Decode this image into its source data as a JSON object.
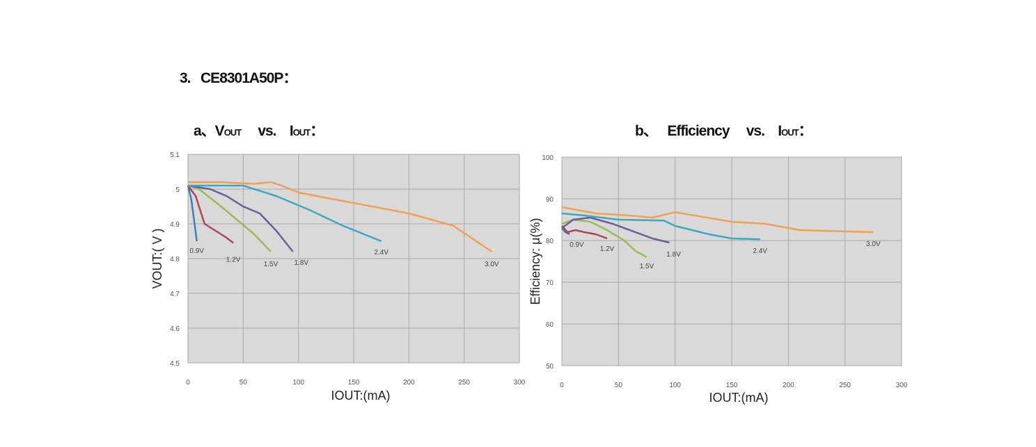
{
  "section_title": "3.   CE8301A50P：",
  "chart_data": [
    {
      "type": "line",
      "title_prefix": "a、V",
      "title_sub1": "OUT",
      "title_mid": "     vs.    I",
      "title_sub2": "OUT",
      "title_suffix": "：",
      "xlabel": "IOUT:(mA)",
      "ylabel": "VOUT:( V )",
      "xlim": [
        0,
        300
      ],
      "ylim": [
        4.5,
        5.1
      ],
      "xticks": [
        "0",
        "50",
        "100",
        "150",
        "200",
        "250",
        "300"
      ],
      "yticks": [
        "4.5",
        "4.6",
        "4.7",
        "4.8",
        "4.9",
        "5",
        "5.1"
      ],
      "grid": true,
      "series": [
        {
          "name": "0.9V",
          "color": "#3b7fb5",
          "x": [
            0,
            3,
            6,
            8
          ],
          "y": [
            5.01,
            4.97,
            4.9,
            4.85
          ]
        },
        {
          "name": "1.2V",
          "color": "#b04456",
          "x": [
            0,
            7,
            12,
            15,
            25,
            35,
            41
          ],
          "y": [
            5.01,
            4.98,
            4.93,
            4.9,
            4.88,
            4.86,
            4.845
          ]
        },
        {
          "name": "1.5V",
          "color": "#9bbb59",
          "x": [
            0,
            10,
            18,
            30,
            45,
            60,
            75
          ],
          "y": [
            5.01,
            5.0,
            4.98,
            4.95,
            4.91,
            4.87,
            4.82
          ]
        },
        {
          "name": "1.8V",
          "color": "#6b5b9a",
          "x": [
            0,
            20,
            35,
            50,
            65,
            80,
            95
          ],
          "y": [
            5.01,
            5.0,
            4.98,
            4.95,
            4.93,
            4.88,
            4.82
          ]
        },
        {
          "name": "2.4V",
          "color": "#3fa6c4",
          "x": [
            0,
            30,
            50,
            80,
            110,
            140,
            175
          ],
          "y": [
            5.01,
            5.01,
            5.01,
            4.98,
            4.94,
            4.895,
            4.85
          ]
        },
        {
          "name": "3.0V",
          "color": "#f0a050",
          "x": [
            0,
            30,
            60,
            75,
            85,
            100,
            150,
            200,
            240,
            275
          ],
          "y": [
            5.02,
            5.02,
            5.015,
            5.02,
            5.01,
            4.99,
            4.96,
            4.93,
            4.895,
            4.82
          ]
        }
      ]
    },
    {
      "type": "line",
      "title_prefix": "b、   Efficiency     vs.    I",
      "title_sub1": "",
      "title_mid": "",
      "title_sub2": "OUT",
      "title_suffix": "：",
      "xlabel": "IOUT:(mA)",
      "ylabel": "Efficiency: μ(%)",
      "xlim": [
        0,
        300
      ],
      "ylim": [
        50,
        100
      ],
      "xticks": [
        "0",
        "50",
        "100",
        "150",
        "200",
        "250",
        "300"
      ],
      "yticks": [
        "50",
        "60",
        "70",
        "80",
        "90",
        "100"
      ],
      "grid": true,
      "series": [
        {
          "name": "0.9V",
          "color": "#3b7fb5",
          "x": [
            0,
            3,
            7
          ],
          "y": [
            83,
            82,
            81.5
          ]
        },
        {
          "name": "1.2V",
          "color": "#b04456",
          "x": [
            0,
            5,
            12,
            20,
            30,
            40
          ],
          "y": [
            83.5,
            82,
            82.5,
            82,
            81.5,
            80.5
          ]
        },
        {
          "name": "1.5V",
          "color": "#9bbb59",
          "x": [
            0,
            10,
            25,
            40,
            55,
            65,
            75
          ],
          "y": [
            84,
            85,
            84.5,
            82.5,
            80,
            77.5,
            76
          ]
        },
        {
          "name": "1.8V",
          "color": "#6b5b9a",
          "x": [
            0,
            10,
            25,
            45,
            65,
            80,
            95
          ],
          "y": [
            83,
            85,
            85.5,
            84,
            82,
            80.5,
            79.5
          ]
        },
        {
          "name": "2.4V",
          "color": "#3fa6c4",
          "x": [
            0,
            20,
            50,
            90,
            100,
            130,
            150,
            175
          ],
          "y": [
            86.5,
            86,
            85,
            84.8,
            83.5,
            81.5,
            80.5,
            80.3
          ]
        },
        {
          "name": "3.0V",
          "color": "#f0a050",
          "x": [
            0,
            30,
            60,
            80,
            100,
            150,
            180,
            210,
            275
          ],
          "y": [
            88,
            86.5,
            86,
            85.5,
            86.8,
            84.5,
            84,
            82.5,
            82
          ]
        }
      ]
    }
  ]
}
